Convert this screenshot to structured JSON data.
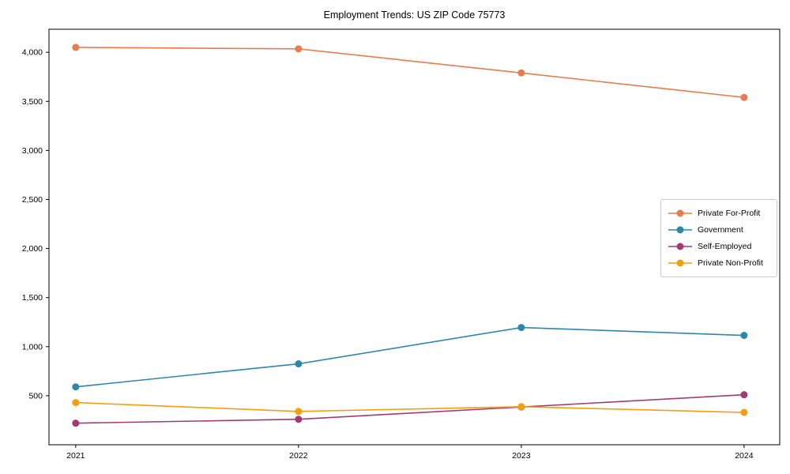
{
  "chart_data": {
    "type": "line",
    "title": "Employment Trends: US ZIP Code 75773",
    "xlabel": "",
    "ylabel": "",
    "x": [
      2021,
      2022,
      2023,
      2024
    ],
    "x_tick_labels": [
      "2021",
      "2022",
      "2023",
      "2024"
    ],
    "series": [
      {
        "name": "Private For-Profit",
        "color": "#e87b4f",
        "values": [
          4050,
          4035,
          3790,
          3540
        ]
      },
      {
        "name": "Government",
        "color": "#2e86ab",
        "values": [
          590,
          825,
          1195,
          1115
        ]
      },
      {
        "name": "Self-Employed",
        "color": "#a23b72",
        "values": [
          220,
          260,
          385,
          510
        ]
      },
      {
        "name": "Private Non-Profit",
        "color": "#f49e12",
        "values": [
          430,
          340,
          388,
          330
        ]
      }
    ],
    "yticks": [
      500,
      1000,
      1500,
      2000,
      2500,
      3000,
      3500,
      4000
    ],
    "ytick_labels": [
      "500",
      "1,000",
      "1,500",
      "2,000",
      "2,500",
      "3,000",
      "3,500",
      "4,000"
    ],
    "ylim": [
      0,
      4235
    ],
    "xlim": [
      2020.88,
      2024.16
    ],
    "grid": false,
    "legend_position": "center-right",
    "marker": "circle",
    "axis_color": "#000000"
  }
}
